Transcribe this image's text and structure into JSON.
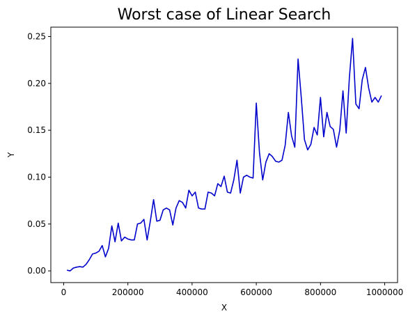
{
  "chart_data": {
    "type": "line",
    "title": "Worst case of Linear Search",
    "xlabel": "X",
    "ylabel": "Y",
    "xlim": [
      -40000,
      1040000
    ],
    "ylim": [
      -0.0125,
      0.26
    ],
    "xticks": [
      0,
      200000,
      400000,
      600000,
      800000,
      1000000
    ],
    "xtick_labels": [
      "0",
      "200000",
      "400000",
      "600000",
      "800000",
      "1000000"
    ],
    "yticks": [
      0.0,
      0.05,
      0.1,
      0.15,
      0.2,
      0.25
    ],
    "ytick_labels": [
      "0.00",
      "0.05",
      "0.10",
      "0.15",
      "0.20",
      "0.25"
    ],
    "grid": false,
    "series": [
      {
        "name": "",
        "color": "#0000cc",
        "x": [
          10000,
          20000,
          30000,
          40000,
          50000,
          60000,
          70000,
          80000,
          90000,
          100000,
          110000,
          120000,
          130000,
          140000,
          150000,
          160000,
          170000,
          180000,
          190000,
          200000,
          210000,
          220000,
          230000,
          240000,
          250000,
          260000,
          270000,
          280000,
          290000,
          300000,
          310000,
          320000,
          330000,
          340000,
          350000,
          360000,
          370000,
          380000,
          390000,
          400000,
          410000,
          420000,
          430000,
          440000,
          450000,
          460000,
          470000,
          480000,
          490000,
          500000,
          510000,
          520000,
          530000,
          540000,
          550000,
          560000,
          570000,
          580000,
          590000,
          600000,
          610000,
          620000,
          630000,
          640000,
          650000,
          660000,
          670000,
          680000,
          690000,
          700000,
          710000,
          720000,
          730000,
          740000,
          750000,
          760000,
          770000,
          780000,
          790000,
          800000,
          810000,
          820000,
          830000,
          840000,
          850000,
          860000,
          870000,
          880000,
          890000,
          900000,
          910000,
          920000,
          930000,
          940000,
          950000,
          960000,
          970000,
          980000,
          990000
        ],
        "values": [
          0.0008,
          0.0,
          0.003,
          0.004,
          0.0045,
          0.004,
          0.007,
          0.012,
          0.018,
          0.019,
          0.021,
          0.027,
          0.015,
          0.024,
          0.048,
          0.031,
          0.051,
          0.032,
          0.036,
          0.034,
          0.033,
          0.033,
          0.05,
          0.051,
          0.055,
          0.033,
          0.053,
          0.076,
          0.053,
          0.054,
          0.065,
          0.067,
          0.065,
          0.049,
          0.067,
          0.075,
          0.073,
          0.067,
          0.086,
          0.08,
          0.084,
          0.067,
          0.066,
          0.066,
          0.084,
          0.083,
          0.08,
          0.093,
          0.09,
          0.101,
          0.084,
          0.083,
          0.097,
          0.118,
          0.083,
          0.1,
          0.102,
          0.1,
          0.099,
          0.179,
          0.126,
          0.097,
          0.116,
          0.125,
          0.122,
          0.117,
          0.116,
          0.118,
          0.134,
          0.169,
          0.144,
          0.132,
          0.226,
          0.185,
          0.14,
          0.129,
          0.135,
          0.153,
          0.145,
          0.185,
          0.143,
          0.169,
          0.154,
          0.151,
          0.132,
          0.15,
          0.192,
          0.147,
          0.206,
          0.248,
          0.178,
          0.173,
          0.204,
          0.217,
          0.195,
          0.18,
          0.185,
          0.18,
          0.187
        ]
      }
    ]
  }
}
